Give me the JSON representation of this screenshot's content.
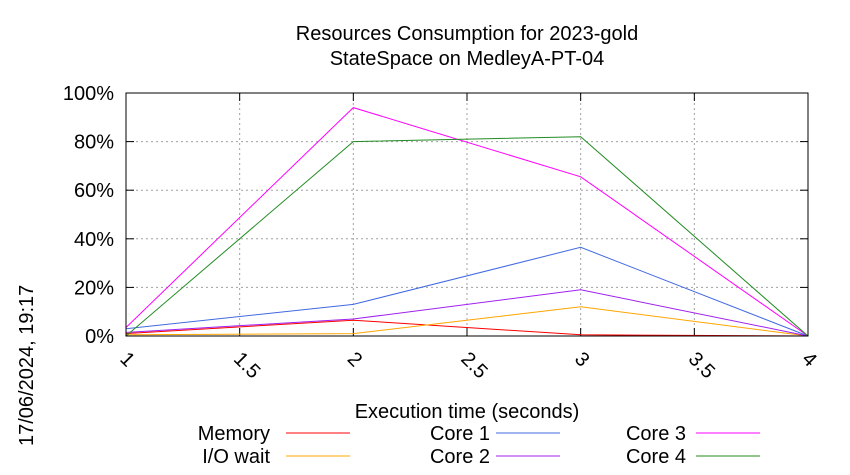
{
  "chart_data": {
    "type": "line",
    "title": "Resources Consumption for 2023-gold",
    "subtitle": "StateSpace on MedleyA-PT-04",
    "xlabel": "Execution time (seconds)",
    "ylabel": "",
    "xlim": [
      1,
      4
    ],
    "ylim": [
      0,
      100
    ],
    "x_ticks": [
      "1",
      "1.5",
      "2",
      "2.5",
      "3",
      "3.5",
      "4"
    ],
    "y_ticks": [
      "0%",
      "20%",
      "40%",
      "60%",
      "80%",
      "100%"
    ],
    "grid": true,
    "legend_position": "bottom",
    "x": [
      1,
      2,
      3,
      4
    ],
    "series": [
      {
        "name": "Memory",
        "color": "#ff0000",
        "values": [
          1,
          6.5,
          0.5,
          0
        ]
      },
      {
        "name": "I/O wait",
        "color": "#ffa500",
        "values": [
          0.5,
          1,
          12,
          0
        ]
      },
      {
        "name": "Core 1",
        "color": "#4169e1",
        "values": [
          3,
          13,
          36.5,
          0
        ]
      },
      {
        "name": "Core 2",
        "color": "#a020f0",
        "values": [
          1.5,
          7,
          19,
          0
        ]
      },
      {
        "name": "Core 3",
        "color": "#ff00ff",
        "values": [
          3.5,
          94,
          65.5,
          0
        ]
      },
      {
        "name": "Core 4",
        "color": "#228b22",
        "values": [
          0,
          80,
          82,
          0
        ]
      }
    ]
  },
  "timestamp": "17/06/2024, 19:17"
}
